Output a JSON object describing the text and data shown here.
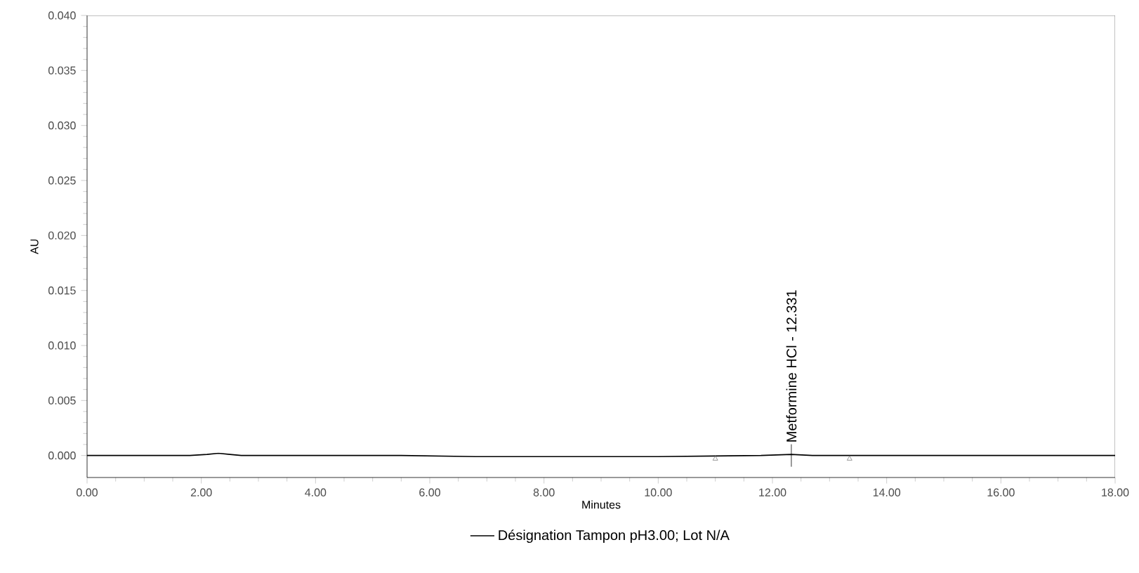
{
  "chart_data": {
    "type": "line",
    "xlabel": "Minutes",
    "ylabel": "AU",
    "xlim": [
      0,
      18
    ],
    "ylim": [
      -0.002,
      0.04
    ],
    "xticks": [
      {
        "value": 0,
        "label": "0.00"
      },
      {
        "value": 2,
        "label": "2.00"
      },
      {
        "value": 4,
        "label": "4.00"
      },
      {
        "value": 6,
        "label": "6.00"
      },
      {
        "value": 8,
        "label": "8.00"
      },
      {
        "value": 10,
        "label": "10.00"
      },
      {
        "value": 12,
        "label": "12.00"
      },
      {
        "value": 14,
        "label": "14.00"
      },
      {
        "value": 16,
        "label": "16.00"
      },
      {
        "value": 18,
        "label": "18.00"
      }
    ],
    "yticks": [
      {
        "value": 0,
        "label": "0.000"
      },
      {
        "value": 0.005,
        "label": "0.005"
      },
      {
        "value": 0.01,
        "label": "0.010"
      },
      {
        "value": 0.015,
        "label": "0.015"
      },
      {
        "value": 0.02,
        "label": "0.020"
      },
      {
        "value": 0.025,
        "label": "0.025"
      },
      {
        "value": 0.03,
        "label": "0.030"
      },
      {
        "value": 0.035,
        "label": "0.035"
      },
      {
        "value": 0.04,
        "label": "0.040"
      }
    ],
    "legend": "bottom",
    "marker": "none",
    "grid": false,
    "series": [
      {
        "name": "Désignation Tampon pH3.00; Lot N/A",
        "color": "#000000",
        "x": [
          0,
          1.8,
          2.1,
          2.3,
          2.5,
          2.7,
          5.5,
          6.8,
          10,
          11.8,
          12.331,
          12.7,
          18
        ],
        "values": [
          0,
          0,
          0.0001,
          0.0002,
          0.0001,
          0,
          0,
          -0.0001,
          -0.0001,
          0,
          0.0001,
          0,
          0
        ]
      },
      {
        "type": "scatter",
        "marker": "triangle",
        "color": "#808080",
        "x": [
          11.0,
          13.35
        ],
        "values": [
          -0.0003,
          -0.0003
        ]
      }
    ],
    "annotations": [
      {
        "text": "Metformine HCl - 12.331",
        "x": 12.331,
        "y": 0
      }
    ]
  }
}
